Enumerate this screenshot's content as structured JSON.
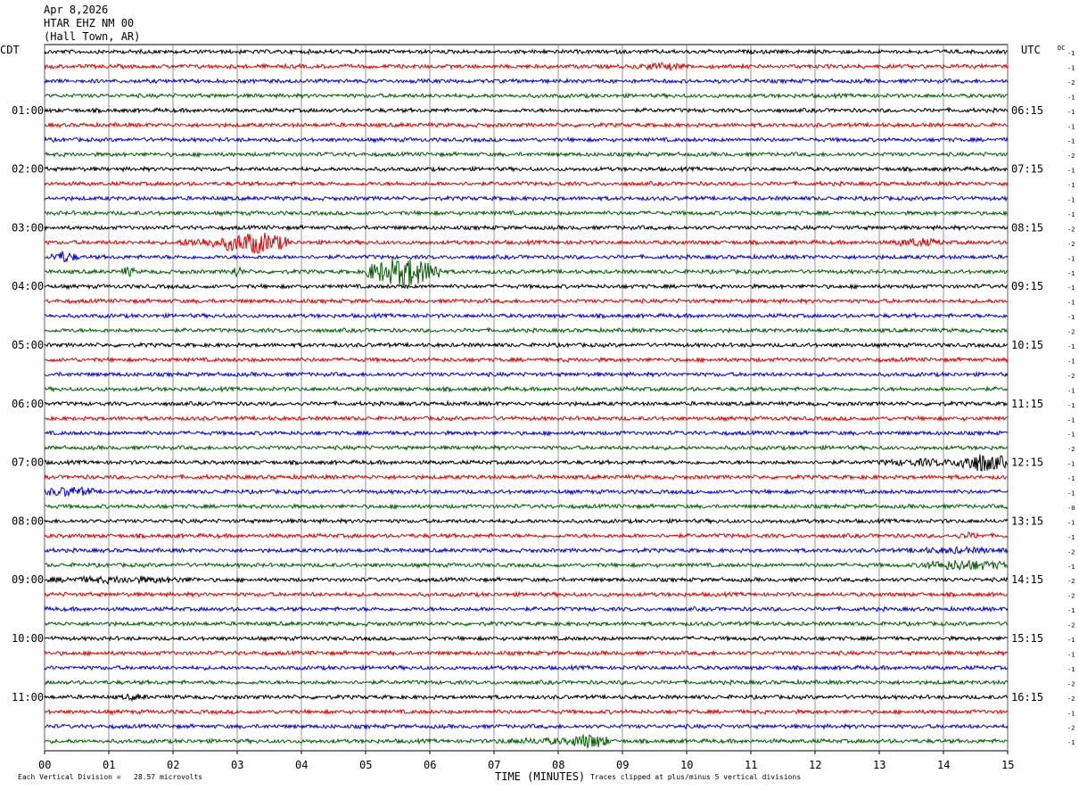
{
  "header": {
    "date": "Apr 8,2026",
    "station": "HTAR EHZ NM 00",
    "location": "(Hall Town, AR)"
  },
  "left_tz": "CDT",
  "right_tz": "UTC",
  "dc_label": "DC",
  "footer": {
    "left": "Each Vertical Division =   28.57 microvolts",
    "center": "TIME (MINUTES)",
    "right": "Traces clipped at plus/minus 5 vertical divisions"
  },
  "chart_data": {
    "type": "line",
    "title": "",
    "xlabel": "TIME (MINUTES)",
    "ylabel": "",
    "xlim": [
      0,
      15
    ],
    "x_ticks": [
      "00",
      "01",
      "02",
      "03",
      "04",
      "05",
      "06",
      "07",
      "08",
      "09",
      "10",
      "11",
      "12",
      "13",
      "14",
      "15"
    ],
    "trace_minutes": 15,
    "trace_count": 48,
    "trace_colors": [
      "#000000",
      "#e00000",
      "#0000e0",
      "#006000"
    ],
    "left_hour_labels": [
      "01:00",
      "02:00",
      "03:00",
      "04:00",
      "05:00",
      "06:00",
      "07:00",
      "08:00",
      "09:00",
      "10:00",
      "11:00"
    ],
    "right_hour_labels": [
      "06:15",
      "07:15",
      "08:15",
      "09:15",
      "10:15",
      "11:15",
      "12:15",
      "13:15",
      "14:15",
      "15:15",
      "16:15"
    ],
    "dc_offsets": [
      "-1",
      "-1",
      "-2",
      "-1",
      "-1",
      "-1",
      "-1",
      "-2",
      "-1",
      "-1",
      "-1",
      "-1",
      "-2",
      "-2",
      "-1",
      "-1",
      "-1",
      "-1",
      "-1",
      "-2",
      "-1",
      "-1",
      "-2",
      "-1",
      "-1",
      "-1",
      "-1",
      "-2",
      "-1",
      "-1",
      "-1",
      "-0",
      "-1",
      "-1",
      "-2",
      "-1",
      "-2",
      "-2",
      "-1",
      "-2",
      "-1",
      "-1",
      "-1",
      "-2",
      "-2",
      "-1",
      "-2",
      "-1"
    ],
    "clip_divisions": 5,
    "microvolts_per_division": 28.57,
    "events": [
      {
        "trace": 1,
        "start_min": 9.2,
        "end_min": 10.0,
        "amplitude": 0.7
      },
      {
        "trace": 13,
        "start_min": 2.1,
        "end_min": 3.0,
        "amplitude": 1.2
      },
      {
        "trace": 13,
        "start_min": 2.8,
        "end_min": 3.8,
        "amplitude": 3.5
      },
      {
        "trace": 13,
        "start_min": 13.2,
        "end_min": 14.0,
        "amplitude": 1.0
      },
      {
        "trace": 14,
        "start_min": 0.1,
        "end_min": 0.5,
        "amplitude": 1.6
      },
      {
        "trace": 15,
        "start_min": 1.2,
        "end_min": 1.4,
        "amplitude": 1.3
      },
      {
        "trace": 15,
        "start_min": 2.9,
        "end_min": 3.1,
        "amplitude": 1.6
      },
      {
        "trace": 15,
        "start_min": 5.0,
        "end_min": 6.2,
        "amplitude": 5.0
      },
      {
        "trace": 28,
        "start_min": 13.0,
        "end_min": 14.4,
        "amplitude": 0.8
      },
      {
        "trace": 28,
        "start_min": 14.2,
        "end_min": 15.0,
        "amplitude": 3.0
      },
      {
        "trace": 30,
        "start_min": 0.0,
        "end_min": 0.8,
        "amplitude": 1.3
      },
      {
        "trace": 33,
        "start_min": 14.2,
        "end_min": 14.6,
        "amplitude": 0.6
      },
      {
        "trace": 34,
        "start_min": 13.4,
        "end_min": 15.0,
        "amplitude": 0.6
      },
      {
        "trace": 35,
        "start_min": 13.6,
        "end_min": 15.0,
        "amplitude": 1.4
      },
      {
        "trace": 36,
        "start_min": 0.0,
        "end_min": 2.4,
        "amplitude": 0.7
      },
      {
        "trace": 44,
        "start_min": 1.2,
        "end_min": 1.6,
        "amplitude": 0.6
      },
      {
        "trace": 47,
        "start_min": 7.0,
        "end_min": 8.8,
        "amplitude": 0.6
      },
      {
        "trace": 47,
        "start_min": 8.2,
        "end_min": 8.8,
        "amplitude": 1.8
      }
    ]
  }
}
